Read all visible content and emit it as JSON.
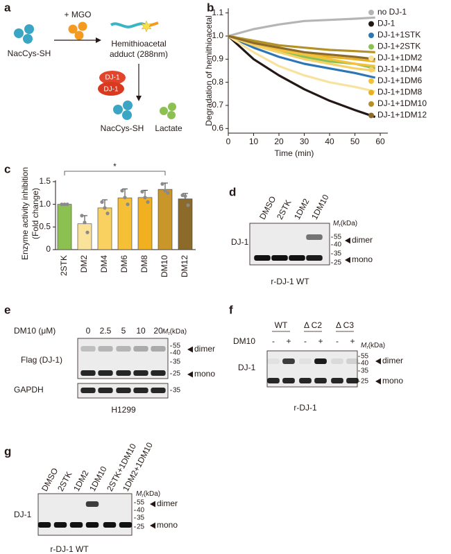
{
  "panel_a": {
    "letter": "a",
    "reagent": "+ MGO",
    "substrate": "NacCys-SH",
    "adduct": [
      "Hemithioacetal",
      "adduct (288nm)"
    ],
    "enzyme": [
      "DJ-1",
      "DJ-1"
    ],
    "products": [
      "NacCys-SH",
      "Lactate"
    ]
  },
  "chart_data": [
    {
      "type": "line",
      "panel": "b",
      "x": [
        0,
        10,
        20,
        30,
        40,
        50,
        58
      ],
      "series": [
        {
          "name": "no DJ-1",
          "color": "#b5b5b5",
          "values": [
            1.0,
            1.03,
            1.05,
            1.065,
            1.07,
            1.075,
            1.08
          ]
        },
        {
          "name": "DJ-1",
          "color": "#231815",
          "values": [
            1.0,
            0.9,
            0.83,
            0.77,
            0.72,
            0.68,
            0.65
          ]
        },
        {
          "name": "DJ-1+1STK",
          "color": "#2e75b6",
          "values": [
            1.0,
            0.95,
            0.91,
            0.88,
            0.86,
            0.84,
            0.82
          ]
        },
        {
          "name": "DJ-1+2STK",
          "color": "#8cc152",
          "values": [
            1.0,
            0.96,
            0.93,
            0.91,
            0.89,
            0.88,
            0.86
          ]
        },
        {
          "name": "DJ-1+1DM2",
          "color": "#f8e39e",
          "values": [
            1.0,
            0.93,
            0.87,
            0.83,
            0.8,
            0.78,
            0.76
          ]
        },
        {
          "name": "DJ-1+1DM4",
          "color": "#f6d168",
          "values": [
            1.0,
            0.96,
            0.93,
            0.9,
            0.88,
            0.86,
            0.85
          ]
        },
        {
          "name": "DJ-1+1DM6",
          "color": "#f3c23a",
          "values": [
            1.0,
            0.97,
            0.94,
            0.92,
            0.9,
            0.88,
            0.87
          ]
        },
        {
          "name": "DJ-1+1DM8",
          "color": "#e8b122",
          "values": [
            1.0,
            0.97,
            0.95,
            0.93,
            0.91,
            0.9,
            0.89
          ]
        },
        {
          "name": "DJ-1+1DM10",
          "color": "#b39126",
          "values": [
            1.0,
            0.98,
            0.96,
            0.95,
            0.94,
            0.935,
            0.93
          ]
        },
        {
          "name": "DJ-1+1DM12",
          "color": "#8b6a2a",
          "values": [
            1.0,
            0.97,
            0.95,
            0.93,
            0.92,
            0.91,
            0.9
          ]
        }
      ],
      "xlim": [
        0,
        63
      ],
      "ylim": [
        0.58,
        1.12
      ],
      "xticks": [
        0,
        10,
        20,
        30,
        40,
        50,
        60
      ],
      "yticks": [
        0.6,
        0.7,
        0.8,
        0.9,
        {
          "value": 1,
          "label": "1.0"
        },
        1.1
      ],
      "xlabel": "Time (min)",
      "ylabel": "Degradation of hemithioacetal",
      "legend": "right"
    },
    {
      "type": "bar",
      "panel": "c",
      "categories": [
        "2STK",
        "DM2",
        "DM4",
        "DM6",
        "DM8",
        "DM10",
        "DM12"
      ],
      "values": [
        1.0,
        0.57,
        0.92,
        1.14,
        1.15,
        1.33,
        1.12
      ],
      "errors": [
        0,
        0.18,
        0.18,
        0.2,
        0.16,
        0.14,
        0.12
      ],
      "points": [
        [
          1.0,
          1.0,
          1.0
        ],
        [
          0.75,
          0.6,
          0.38
        ],
        [
          1.05,
          0.92,
          0.8
        ],
        [
          1.3,
          1.15,
          1.0
        ],
        [
          1.28,
          1.15,
          1.05
        ],
        [
          1.45,
          1.3,
          1.25
        ],
        [
          1.2,
          1.18,
          0.98
        ]
      ],
      "colors": [
        "#8cc152",
        "#fbe29a",
        "#f8d160",
        "#f5bf36",
        "#f0b020",
        "#c9962a",
        "#8b6a2a"
      ],
      "ylim": [
        0,
        1.5
      ],
      "yticks": [
        0,
        0.5,
        {
          "value": 1,
          "label": "1.0"
        },
        1.5
      ],
      "ylabel": [
        "Enzyme activity inhibition",
        "(Fold change)"
      ],
      "annotation": "*"
    }
  ],
  "blots": [
    {
      "letter": "d",
      "lanes": [
        "DMSO",
        "2STK",
        "1DM2",
        "1DM10"
      ],
      "markers": [
        "55",
        "40",
        "35",
        "25"
      ],
      "mr": {
        "symbol": "M",
        "subscript": "r",
        "unit": "(kDa)"
      },
      "bands": [
        "dimer",
        "mono"
      ],
      "protein": "DJ-1",
      "caption": "r-DJ-1 WT"
    },
    {
      "letter": "e",
      "lane_title": "DM10 (μM)",
      "lanes": [
        "0",
        "2.5",
        "5",
        "10",
        "20"
      ],
      "markers": [
        "55",
        "40",
        "35",
        "25"
      ],
      "mr": {
        "symbol": "M",
        "subscript": "r",
        "unit": "(kDa)"
      },
      "bands": [
        "dimer",
        "mono"
      ],
      "protein": "Flag (DJ-1)",
      "loading": {
        "protein": "GAPDH",
        "marker": "35"
      },
      "caption": "H1299"
    },
    {
      "letter": "f",
      "groups": [
        "WT",
        "Δ C2",
        "Δ C3"
      ],
      "treatment": "DM10",
      "lanes": [
        "-",
        "+",
        "-",
        "+",
        "-",
        "+"
      ],
      "markers": [
        "55",
        "40",
        "35",
        "25"
      ],
      "mr": {
        "symbol": "M",
        "subscript": "r",
        "unit": "(kDa)"
      },
      "bands": [
        "dimer",
        "mono"
      ],
      "protein": "DJ-1",
      "caption": "r-DJ-1"
    },
    {
      "letter": "g",
      "lanes": [
        "DMSO",
        "2STK",
        "1DM2",
        "1DM10",
        "2STK+1DM10",
        "1DM2+1DM10"
      ],
      "markers": [
        "55",
        "40",
        "35",
        "25"
      ],
      "mr": {
        "symbol": "M",
        "subscript": "r",
        "unit": "(kDa)"
      },
      "bands": [
        "dimer",
        "mono"
      ],
      "protein": "DJ-1",
      "caption": "r-DJ-1 WT"
    }
  ]
}
